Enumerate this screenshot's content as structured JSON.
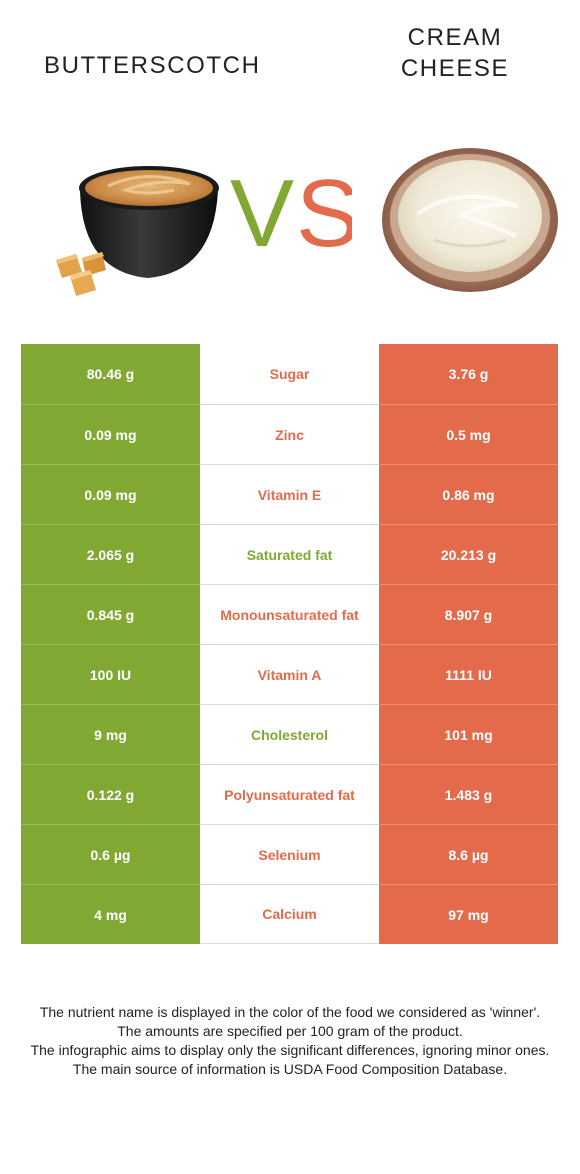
{
  "header": {
    "left_food": "BUTTERSCOTCH",
    "right_food_line1": "CREAM",
    "right_food_line2": "CHEESE",
    "vs_v": "V",
    "vs_s": "S"
  },
  "colors": {
    "left_accent": "#80a833",
    "right_accent": "#e46a4c"
  },
  "rows": [
    {
      "left": "80.46 g",
      "nutrient": "Sugar",
      "right": "3.76 g",
      "winner": "right"
    },
    {
      "left": "0.09 mg",
      "nutrient": "Zinc",
      "right": "0.5 mg",
      "winner": "right"
    },
    {
      "left": "0.09 mg",
      "nutrient": "Vitamin E",
      "right": "0.86 mg",
      "winner": "right"
    },
    {
      "left": "2.065 g",
      "nutrient": "Saturated fat",
      "right": "20.213 g",
      "winner": "left"
    },
    {
      "left": "0.845 g",
      "nutrient": "Monounsaturated fat",
      "right": "8.907 g",
      "winner": "right"
    },
    {
      "left": "100 IU",
      "nutrient": "Vitamin A",
      "right": "1111 IU",
      "winner": "right"
    },
    {
      "left": "9 mg",
      "nutrient": "Cholesterol",
      "right": "101 mg",
      "winner": "left"
    },
    {
      "left": "0.122 g",
      "nutrient": "Polyunsaturated fat",
      "right": "1.483 g",
      "winner": "right"
    },
    {
      "left": "0.6 µg",
      "nutrient": "Selenium",
      "right": "8.6 µg",
      "winner": "right"
    },
    {
      "left": "4 mg",
      "nutrient": "Calcium",
      "right": "97 mg",
      "winner": "right"
    }
  ],
  "footer": {
    "line1": "The nutrient name is displayed in the color of the food we considered as 'winner'.",
    "line2": "The amounts are specified per 100 gram of the product.",
    "line3": "The infographic aims to display only the significant differences, ignoring minor ones.",
    "line4": "The main source of information is USDA Food Composition Database."
  }
}
